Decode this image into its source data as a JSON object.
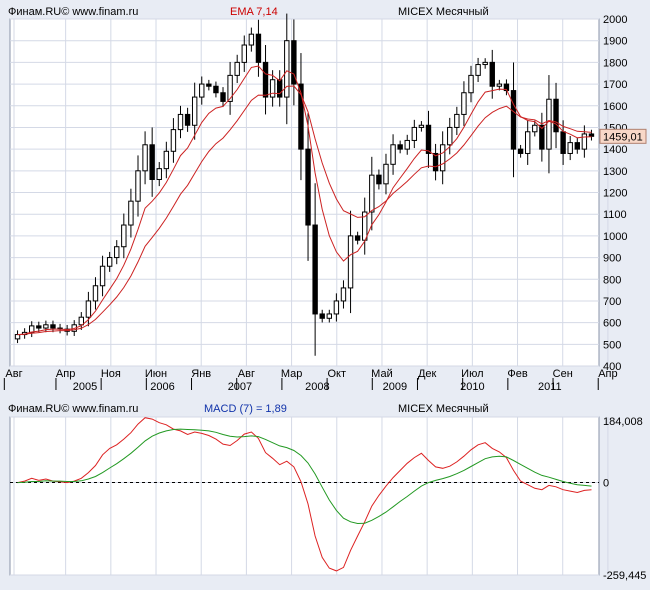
{
  "colors": {
    "background": "#e8ecf4",
    "plot_bg": "#ffffff",
    "grid": "#d4d9e6",
    "candle": "#000000",
    "ema": "#cc2222",
    "macd": "#dd2222",
    "signal": "#229922",
    "price_badge": "#f8d8c8",
    "accent_text": "#cc0000",
    "blue_text": "#1133aa"
  },
  "top": {
    "source_left": "Финам.RU© www.finam.ru",
    "indicator": "EMA 7,14",
    "instrument": "MICEX Месячный",
    "last_price": "1459,01"
  },
  "bottom": {
    "source_left": "Финам.RU© www.finam.ru",
    "indicator": "MACD (7) = 1,89",
    "instrument": "MICEX Месячный",
    "ymax_label": "184,008",
    "ymin_label": "-259,445",
    "zero_label": "0"
  },
  "x_axis": {
    "month_labels": [
      "Авг",
      "Апр",
      "Ноя",
      "Июн",
      "Янв",
      "Авг",
      "Мар",
      "Окт",
      "Май",
      "Дек",
      "Июл",
      "Фев",
      "Сен",
      "Апр"
    ],
    "year_labels": [
      "2005",
      "2006",
      "2007",
      "2008",
      "2009",
      "2010",
      "2011"
    ]
  },
  "chart_data": [
    {
      "type": "candlestick",
      "title": "MICEX Месячный",
      "subtitle": "EMA 7,14",
      "ylim": [
        400,
        2000
      ],
      "yticks": [
        400,
        500,
        600,
        700,
        800,
        900,
        1000,
        1100,
        1200,
        1300,
        1400,
        1500,
        1600,
        1700,
        1800,
        1900,
        2000
      ],
      "x_start": "2004-08",
      "grid": true,
      "last_value": 1459.01,
      "close_series": [
        545,
        555,
        585,
        575,
        590,
        575,
        570,
        560,
        590,
        625,
        700,
        770,
        860,
        900,
        950,
        1050,
        1160,
        1300,
        1420,
        1260,
        1310,
        1390,
        1490,
        1560,
        1510,
        1640,
        1700,
        1690,
        1660,
        1620,
        1740,
        1800,
        1880,
        1930,
        1800,
        1640,
        1720,
        1640,
        1900,
        1700,
        1400,
        1050,
        640,
        620,
        640,
        700,
        760,
        1000,
        980,
        1110,
        1280,
        1240,
        1330,
        1420,
        1400,
        1440,
        1500,
        1510,
        1380,
        1300,
        1420,
        1500,
        1560,
        1660,
        1740,
        1790,
        1800,
        1690,
        1700,
        1670,
        1400,
        1380,
        1480,
        1510,
        1400,
        1630,
        1480,
        1380,
        1430,
        1400,
        1470,
        1459
      ],
      "ema_fast": [
        545,
        547,
        557,
        561,
        568,
        570,
        570,
        568,
        573,
        586,
        614,
        653,
        705,
        754,
        803,
        865,
        939,
        1030,
        1128,
        1160,
        1198,
        1246,
        1307,
        1370,
        1405,
        1464,
        1523,
        1565,
        1589,
        1597,
        1633,
        1675,
        1726,
        1777,
        1783,
        1747,
        1740,
        1715,
        1761,
        1746,
        1659,
        1507,
        1290,
        1122,
        1001,
        926,
        884,
        913,
        929,
        975,
        1051,
        1098,
        1156,
        1222,
        1267,
        1310,
        1357,
        1396,
        1392,
        1369,
        1382,
        1411,
        1448,
        1501,
        1561,
        1618,
        1663,
        1670,
        1677,
        1675,
        1606,
        1550,
        1532,
        1527,
        1495,
        1529,
        1516,
        1482,
        1469,
        1452,
        1456,
        1457
      ],
      "ema_slow": [
        545,
        546,
        551,
        554,
        559,
        561,
        563,
        563,
        567,
        574,
        591,
        615,
        648,
        682,
        718,
        762,
        815,
        880,
        952,
        993,
        1035,
        1082,
        1136,
        1192,
        1233,
        1288,
        1343,
        1389,
        1425,
        1451,
        1489,
        1531,
        1578,
        1625,
        1649,
        1648,
        1658,
        1656,
        1689,
        1691,
        1652,
        1572,
        1447,
        1336,
        1243,
        1170,
        1116,
        1101,
        1085,
        1088,
        1117,
        1135,
        1161,
        1196,
        1223,
        1251,
        1284,
        1314,
        1322,
        1319,
        1332,
        1355,
        1382,
        1419,
        1462,
        1506,
        1545,
        1570,
        1587,
        1598,
        1573,
        1548,
        1539,
        1535,
        1517,
        1532,
        1525,
        1505,
        1494,
        1482,
        1480,
        1477
      ]
    },
    {
      "type": "line",
      "title": "MACD (7) = 1,89",
      "ylim": [
        -259.445,
        184.008
      ],
      "series": [
        {
          "values": [
            0,
            4,
            12,
            6,
            10,
            4,
            2,
            0,
            4,
            12,
            28,
            48,
            78,
            96,
            106,
            122,
            140,
            164,
            182,
            178,
            168,
            162,
            150,
            145,
            135,
            142,
            138,
            132,
            122,
            108,
            104,
            118,
            136,
            142,
            124,
            84,
            68,
            50,
            60,
            44,
            2,
            -60,
            -150,
            -210,
            -240,
            -248,
            -238,
            -190,
            -150,
            -110,
            -66,
            -36,
            -10,
            14,
            34,
            54,
            70,
            82,
            62,
            44,
            40,
            46,
            58,
            74,
            92,
            106,
            112,
            96,
            86,
            70,
            34,
            4,
            -6,
            -16,
            -20,
            -8,
            -12,
            -20,
            -24,
            -28,
            -22,
            -20
          ]
        },
        {
          "values": [
            0,
            1,
            3,
            3,
            5,
            4,
            4,
            3,
            3,
            5,
            10,
            17,
            28,
            41,
            53,
            67,
            82,
            99,
            117,
            130,
            139,
            145,
            149,
            150,
            149,
            148,
            147,
            145,
            141,
            135,
            130,
            128,
            129,
            131,
            129,
            121,
            112,
            103,
            98,
            90,
            76,
            55,
            24,
            -13,
            -49,
            -78,
            -100,
            -110,
            -115,
            -114,
            -106,
            -95,
            -83,
            -68,
            -53,
            -39,
            -24,
            -10,
            0,
            6,
            11,
            17,
            25,
            34,
            45,
            56,
            67,
            72,
            74,
            72,
            62,
            51,
            40,
            29,
            20,
            15,
            9,
            3,
            -2,
            -6,
            -8,
            -10
          ]
        }
      ]
    }
  ]
}
